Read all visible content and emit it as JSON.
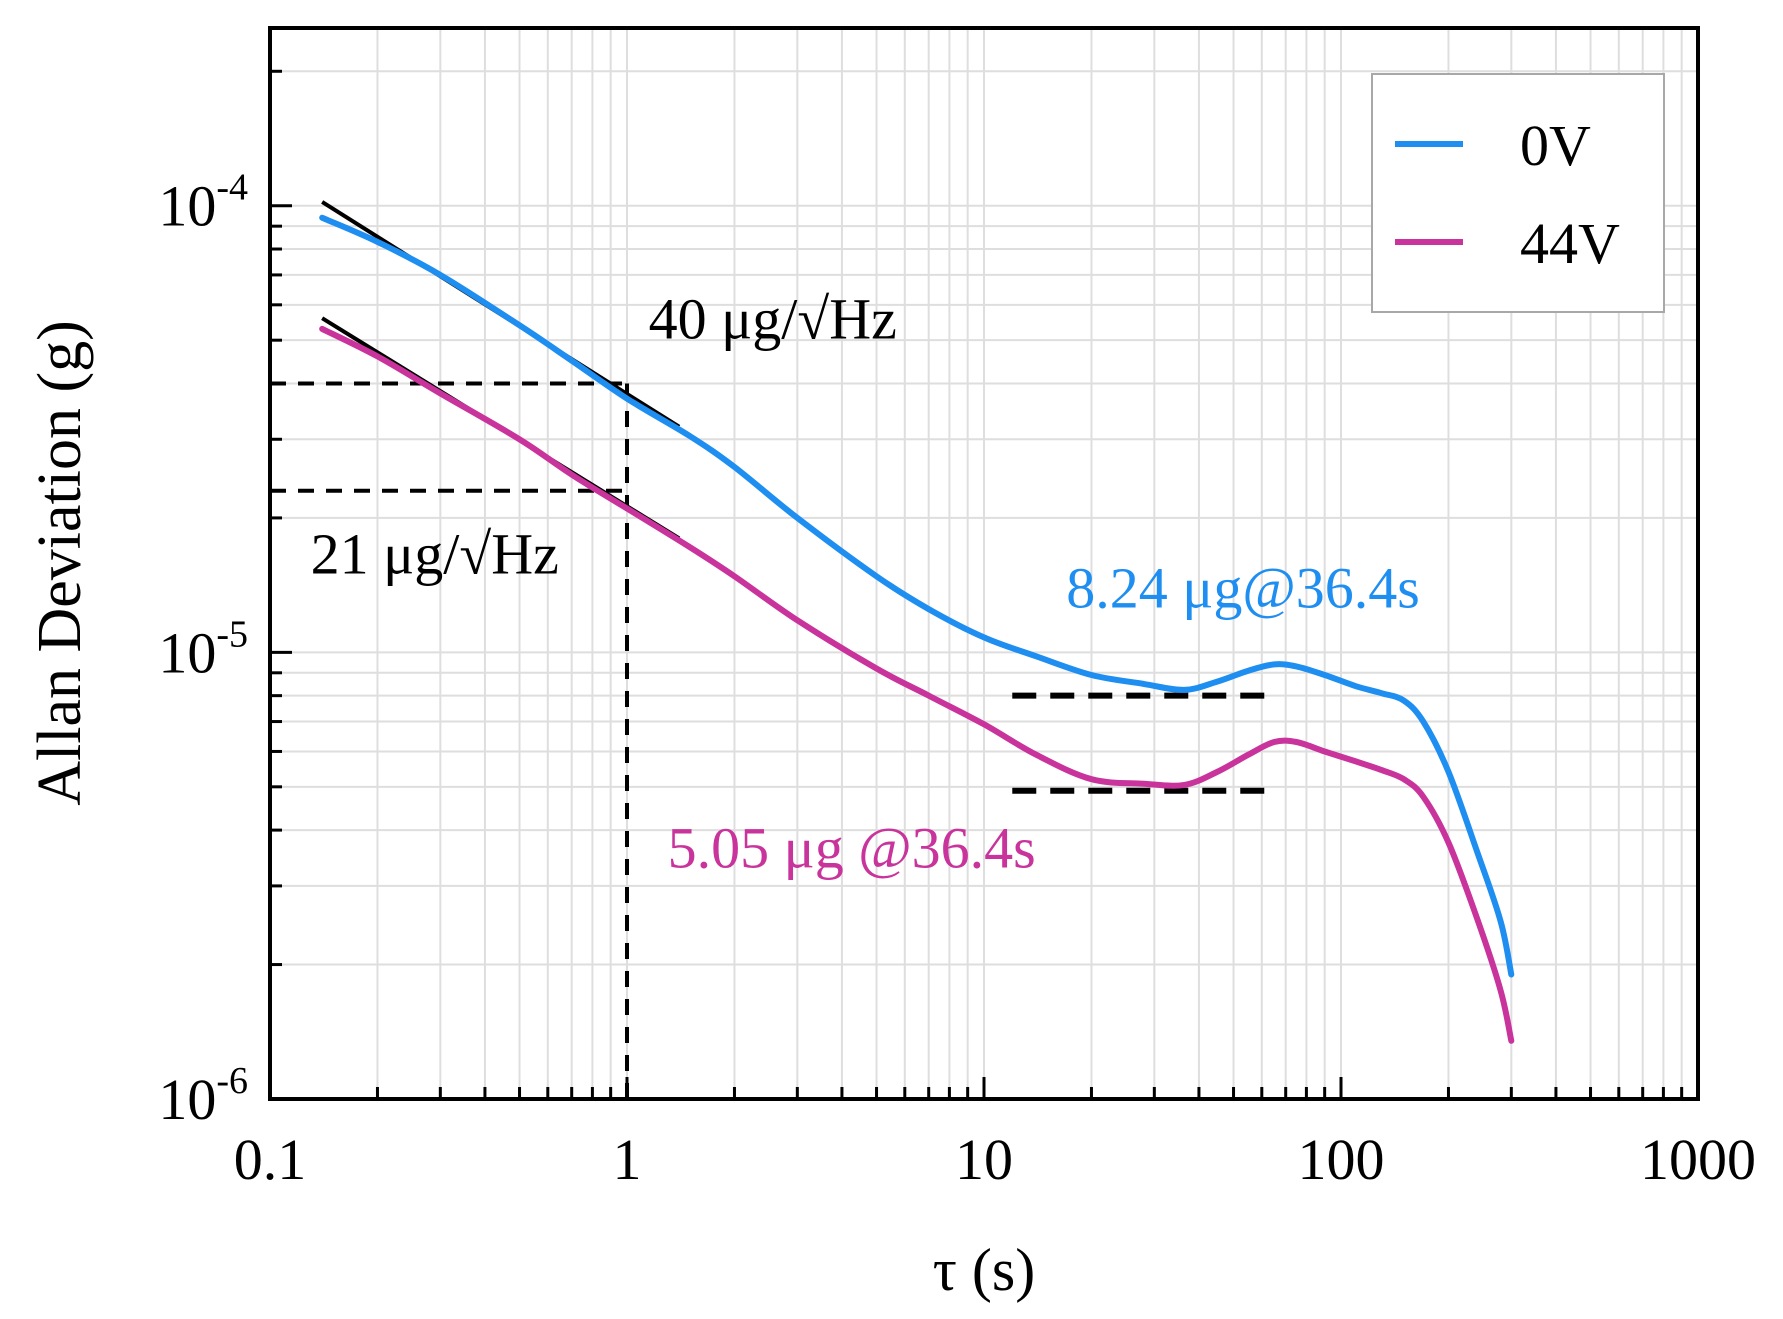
{
  "chart_data": {
    "type": "line",
    "xlabel": "τ (s)",
    "ylabel": "Allan Deviation (g)",
    "xscale": "log",
    "yscale": "log",
    "xlim": [
      0.1,
      1000
    ],
    "ylim": [
      1e-06,
      0.00025
    ],
    "grid": true,
    "legend_position": "top-right",
    "xticks": [
      {
        "value": 0.1,
        "label": "0.1"
      },
      {
        "value": 1,
        "label": "1"
      },
      {
        "value": 10,
        "label": "10"
      },
      {
        "value": 100,
        "label": "100"
      },
      {
        "value": 1000,
        "label": "1000"
      }
    ],
    "yticks": [
      {
        "value": 1e-06,
        "base": "10",
        "exp": "-6"
      },
      {
        "value": 1e-05,
        "base": "10",
        "exp": "-5"
      },
      {
        "value": 0.0001,
        "base": "10",
        "exp": "-4"
      }
    ],
    "series": [
      {
        "name": "0V",
        "color": "#1f8ef1",
        "x": [
          0.14,
          0.2,
          0.3,
          0.5,
          0.7,
          1,
          1.5,
          2,
          3,
          5,
          7,
          10,
          14,
          20,
          28,
          36.4,
          45,
          55,
          65,
          75,
          90,
          110,
          130,
          150,
          170,
          200,
          240,
          280,
          300
        ],
        "y": [
          9.4e-05,
          8.3e-05,
          7e-05,
          5.4e-05,
          4.5e-05,
          3.7e-05,
          3.05e-05,
          2.6e-05,
          2e-05,
          1.48e-05,
          1.25e-05,
          1.08e-05,
          9.8e-06,
          8.9e-06,
          8.5e-06,
          8.24e-06,
          8.6e-06,
          9.1e-06,
          9.4e-06,
          9.3e-06,
          8.9e-06,
          8.4e-06,
          8.1e-06,
          7.8e-06,
          7e-06,
          5.4e-06,
          3.6e-06,
          2.5e-06,
          1.9e-06
        ]
      },
      {
        "name": "44V",
        "color": "#c9339c",
        "x": [
          0.14,
          0.2,
          0.3,
          0.5,
          0.7,
          1,
          1.5,
          2,
          3,
          5,
          7,
          10,
          14,
          20,
          28,
          36.4,
          45,
          55,
          65,
          75,
          90,
          110,
          130,
          150,
          170,
          200,
          240,
          280,
          300
        ],
        "y": [
          5.3e-05,
          4.6e-05,
          3.8e-05,
          3e-05,
          2.5e-05,
          2.1e-05,
          1.72e-05,
          1.48e-05,
          1.18e-05,
          9.2e-06,
          8e-06,
          6.9e-06,
          5.9e-06,
          5.2e-06,
          5.08e-06,
          5.05e-06,
          5.4e-06,
          5.9e-06,
          6.3e-06,
          6.3e-06,
          6e-06,
          5.7e-06,
          5.45e-06,
          5.2e-06,
          4.75e-06,
          3.75e-06,
          2.55e-06,
          1.75e-06,
          1.35e-06
        ]
      }
    ],
    "reference_lines": [
      {
        "kind": "slope",
        "x": [
          0.14,
          1.4
        ],
        "y": [
          0.000102,
          3.2e-05
        ]
      },
      {
        "kind": "slope",
        "x": [
          0.14,
          1.4
        ],
        "y": [
          5.6e-05,
          1.8e-05
        ]
      },
      {
        "kind": "dashed-h",
        "x": [
          0.1,
          1
        ],
        "y": [
          4e-05,
          4e-05
        ]
      },
      {
        "kind": "dashed-h",
        "x": [
          0.1,
          1
        ],
        "y": [
          2.3e-05,
          2.3e-05
        ]
      },
      {
        "kind": "dashed-v",
        "x": [
          1,
          1
        ],
        "y": [
          1e-06,
          4e-05
        ]
      },
      {
        "kind": "plateau",
        "x": [
          12,
          62
        ],
        "y": [
          8e-06,
          8e-06
        ]
      },
      {
        "kind": "plateau",
        "x": [
          12,
          62
        ],
        "y": [
          4.9e-06,
          4.9e-06
        ]
      }
    ],
    "annotations": [
      {
        "text": "40 μg/√Hz",
        "color": "#000000",
        "x": 1.15,
        "y": 5.05e-05
      },
      {
        "text": "21 μg/√Hz",
        "color": "#000000",
        "x": 0.13,
        "y": 1.5e-05
      },
      {
        "text": "8.24 μg@36.4s",
        "color": "#1f8ef1",
        "x": 17,
        "y": 1.26e-05
      },
      {
        "text": "5.05 μg @36.4s",
        "color": "#c9339c",
        "x": 1.3,
        "y": 3.3e-06
      }
    ]
  }
}
